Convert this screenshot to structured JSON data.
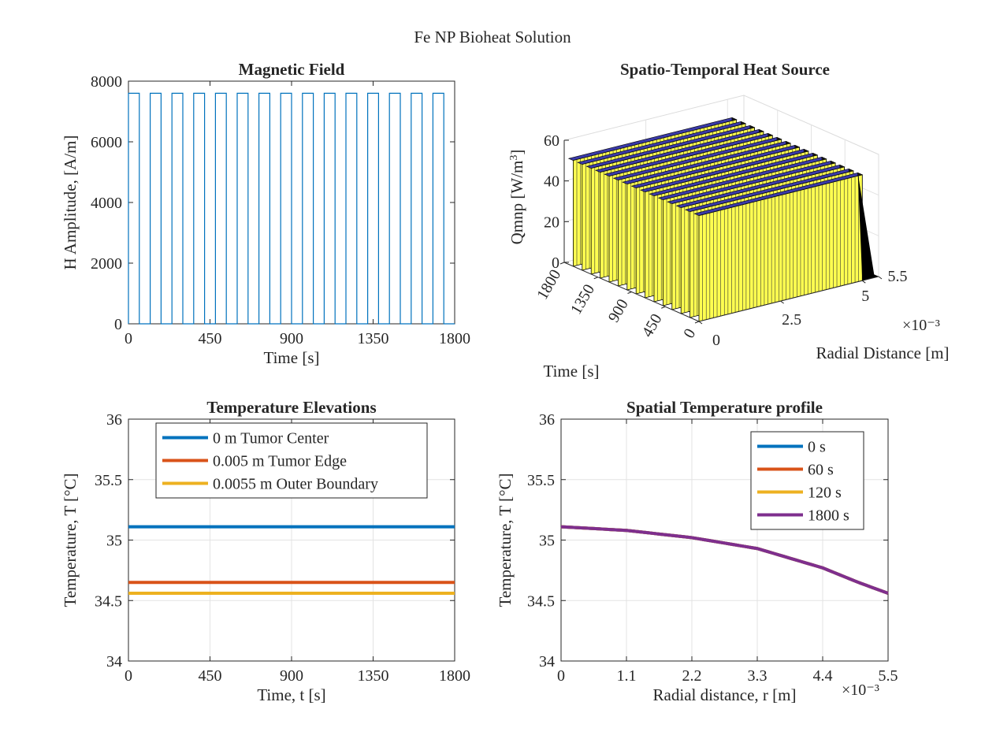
{
  "figure_title": "Fe NP Bioheat Solution",
  "chart_data": [
    {
      "type": "line",
      "title": "Magnetic Field",
      "xlabel": "Time [s]",
      "ylabel": "H Amplitude, [A/m]",
      "xlim": [
        0,
        1800
      ],
      "ylim": [
        0,
        8000
      ],
      "xticks": [
        0,
        450,
        900,
        1350,
        1800
      ],
      "yticks": [
        0,
        2000,
        4000,
        6000,
        8000
      ],
      "grid": false,
      "pulse": {
        "high": 7600,
        "low": 0,
        "period": 120,
        "on_duration": 60,
        "start": 0,
        "end": 1800
      },
      "color": "#0072BD"
    },
    {
      "type": "bar3d",
      "title": "Spatio-Temporal Heat Source",
      "zlabel": "Qmnp [W/m³]",
      "zlabel_base": "Qmnp [W/m",
      "zlabel_sup": "3",
      "zlabel_end": "]",
      "xlabel": "Radial Distance [m]",
      "ylabel": "Time [s]",
      "x_exponent": "×10⁻³",
      "xlim": [
        0,
        5.5
      ],
      "ylim": [
        0,
        1800
      ],
      "zlim": [
        0,
        60
      ],
      "xticks": [
        "0",
        "2.5",
        "5",
        "5.5"
      ],
      "yticks": [
        "0",
        "450",
        "900",
        "1350",
        "1800"
      ],
      "zticks": [
        "0",
        "20",
        "40",
        "60"
      ],
      "q_value": 52,
      "tumor_radius": 5.0,
      "pulses": 15,
      "bar_face_color": "#FFFF50",
      "bar_top_color": "#3A3AA8"
    },
    {
      "type": "line",
      "title": "Temperature Elevations",
      "xlabel": "Time, t [s]",
      "ylabel": "Temperature, T [°C]",
      "xlim": [
        0,
        1800
      ],
      "ylim": [
        34,
        36
      ],
      "xticks": [
        0,
        450,
        900,
        1350,
        1800
      ],
      "yticks": [
        34,
        34.5,
        35,
        35.5,
        36
      ],
      "grid": true,
      "legend_position": "top-left",
      "series": [
        {
          "name": "0 m Tumor Center",
          "x": [
            0,
            1800
          ],
          "y": [
            35.11,
            35.11
          ],
          "color": "#0072BD"
        },
        {
          "name": "0.005 m Tumor Edge",
          "x": [
            0,
            1800
          ],
          "y": [
            34.65,
            34.65
          ],
          "color": "#D95319"
        },
        {
          "name": "0.0055 m Outer Boundary",
          "x": [
            0,
            1800
          ],
          "y": [
            34.56,
            34.56
          ],
          "color": "#EDB120"
        }
      ]
    },
    {
      "type": "line",
      "title": "Spatial Temperature profile",
      "xlabel": "Radial distance, r [m]",
      "ylabel": "Temperature, T [°C]",
      "x_exponent": "×10⁻³",
      "xlim": [
        0,
        5.5
      ],
      "ylim": [
        34,
        36
      ],
      "xticks": [
        0,
        1.1,
        2.2,
        3.3,
        4.4,
        5.5
      ],
      "yticks": [
        34,
        34.5,
        35,
        35.5,
        36
      ],
      "grid": true,
      "legend_position": "top-right",
      "series": [
        {
          "name": "0 s",
          "x": [
            0,
            1.1,
            2.2,
            3.3,
            4.4,
            5.0,
            5.5
          ],
          "y": [
            35.11,
            35.08,
            35.02,
            34.93,
            34.77,
            34.65,
            34.56
          ],
          "color": "#0072BD"
        },
        {
          "name": "60 s",
          "x": [
            0,
            1.1,
            2.2,
            3.3,
            4.4,
            5.0,
            5.5
          ],
          "y": [
            35.11,
            35.08,
            35.02,
            34.93,
            34.77,
            34.65,
            34.56
          ],
          "color": "#D95319"
        },
        {
          "name": "120 s",
          "x": [
            0,
            1.1,
            2.2,
            3.3,
            4.4,
            5.0,
            5.5
          ],
          "y": [
            35.11,
            35.08,
            35.02,
            34.93,
            34.77,
            34.65,
            34.56
          ],
          "color": "#EDB120"
        },
        {
          "name": "1800 s",
          "x": [
            0,
            1.1,
            2.2,
            3.3,
            4.4,
            5.0,
            5.5
          ],
          "y": [
            35.11,
            35.08,
            35.02,
            34.93,
            34.77,
            34.65,
            34.56
          ],
          "color": "#7E2F8E"
        }
      ]
    }
  ]
}
